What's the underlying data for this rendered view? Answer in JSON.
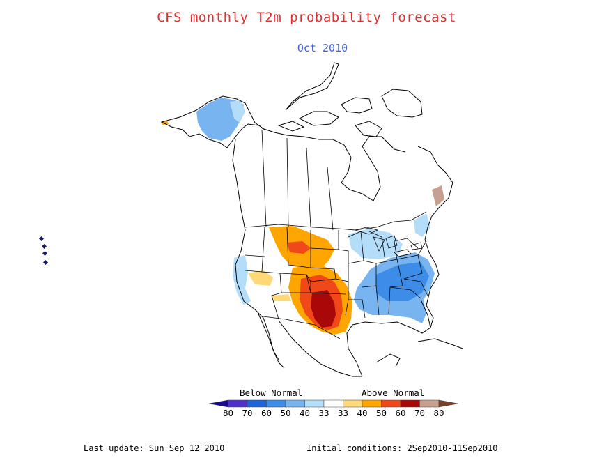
{
  "title": "CFS monthly T2m probability forecast",
  "subtitle": "Oct 2010",
  "legend": {
    "below_label": "Below Normal",
    "above_label": "Above Normal",
    "ticks": [
      "80",
      "70",
      "60",
      "50",
      "40",
      "33",
      "33",
      "40",
      "50",
      "60",
      "70",
      "80"
    ],
    "colors": [
      "#1a0a8c",
      "#5030c8",
      "#1c64d8",
      "#3c8ce8",
      "#78b4f0",
      "#b4ddfa",
      "#ffffff",
      "#ffd878",
      "#ffa500",
      "#f04818",
      "#a80808",
      "#c8a090",
      "#7a4028"
    ]
  },
  "footer": {
    "last_update": "Last update: Sun Sep 12 2010",
    "initial_conditions": "Initial conditions: 2Sep2010-11Sep2010"
  }
}
